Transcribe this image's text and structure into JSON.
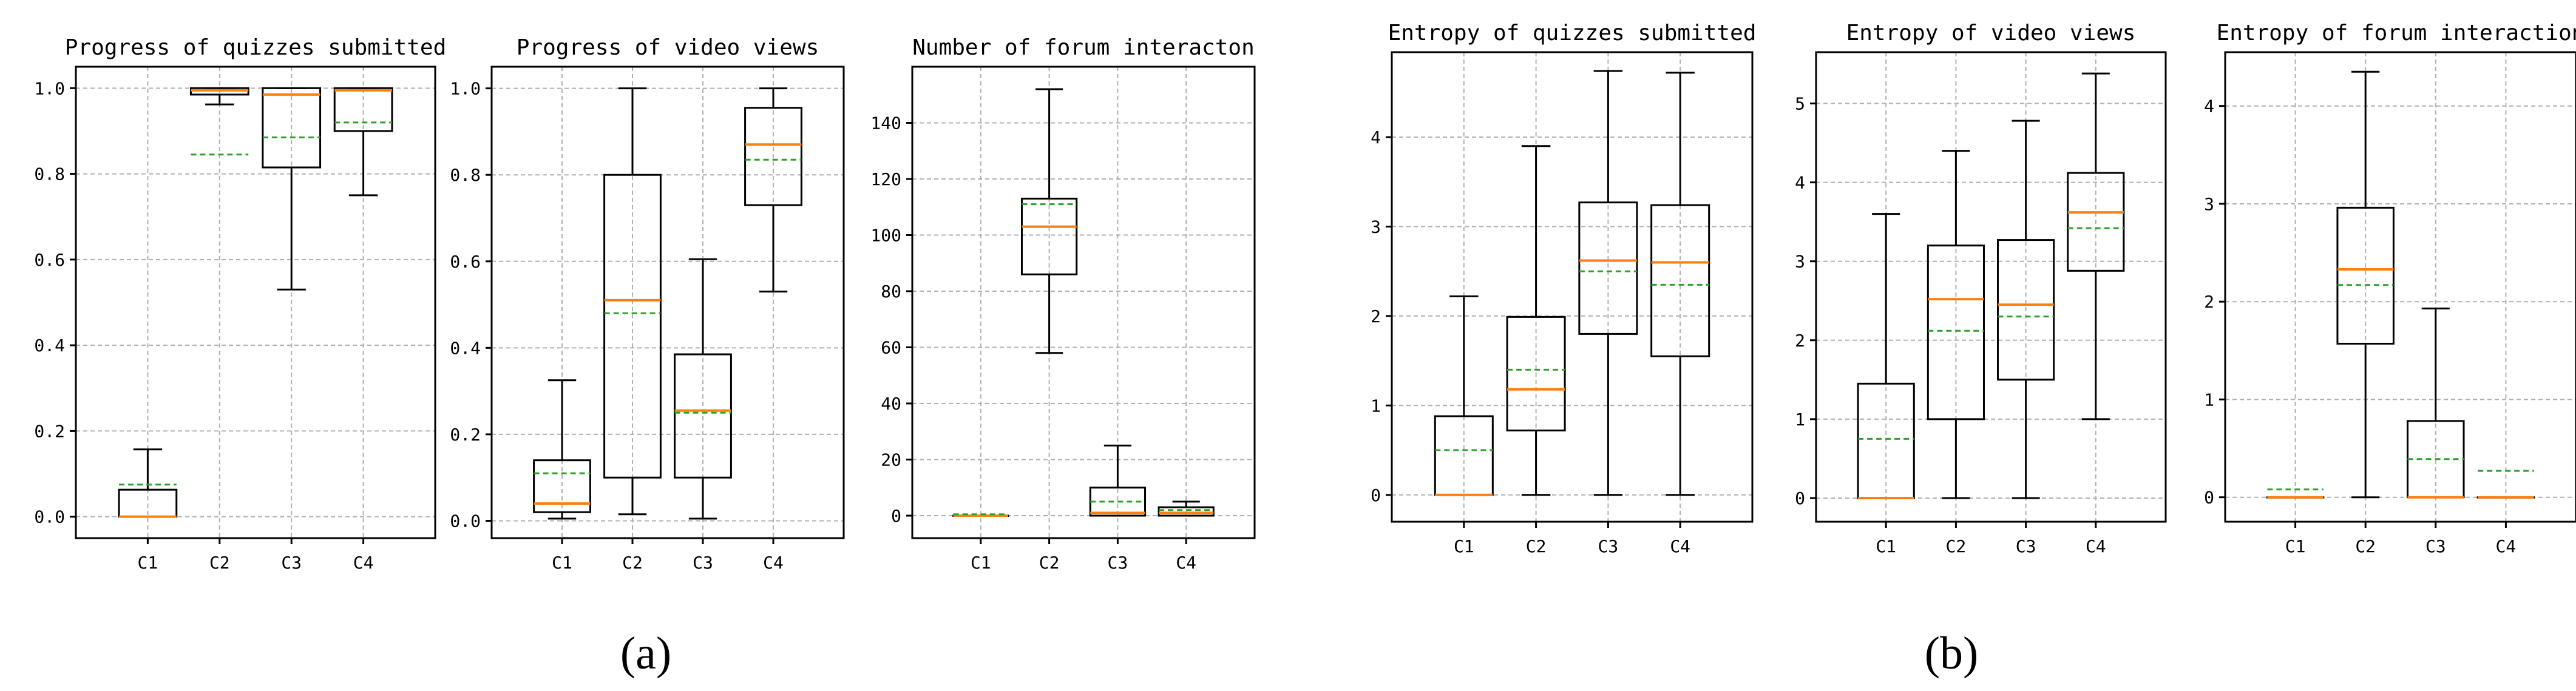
{
  "captions": {
    "a": "(a)",
    "b": "(b)"
  },
  "colors": {
    "box": "#000000",
    "median": "#ff7f0e",
    "mean": "#2ca02c",
    "grid": "#b0b0b0"
  },
  "chart_data": [
    {
      "type": "box",
      "title": "Progress of quizzes submitted",
      "categories": [
        "C1",
        "C2",
        "C3",
        "C4"
      ],
      "ylim": [
        -0.05,
        1.05
      ],
      "yticks": [
        0.0,
        0.2,
        0.4,
        0.6,
        0.8,
        1.0
      ],
      "ytick_labels": [
        "0.0",
        "0.2",
        "0.4",
        "0.6",
        "0.8",
        "1.0"
      ],
      "grid": true,
      "boxes": [
        {
          "min": 0.0,
          "q1": 0.0,
          "median": 0.0,
          "q3": 0.063,
          "max": 0.157,
          "mean": 0.075
        },
        {
          "min": 0.962,
          "q1": 0.985,
          "median": 0.995,
          "q3": 1.0,
          "max": 1.0,
          "mean": 0.845
        },
        {
          "min": 0.53,
          "q1": 0.815,
          "median": 0.985,
          "q3": 1.0,
          "max": 1.0,
          "mean": 0.885
        },
        {
          "min": 0.75,
          "q1": 0.9,
          "median": 0.995,
          "q3": 1.0,
          "max": 1.0,
          "mean": 0.92
        }
      ]
    },
    {
      "type": "box",
      "title": "Progress of video views",
      "categories": [
        "C1",
        "C2",
        "C3",
        "C4"
      ],
      "ylim": [
        -0.04,
        1.05
      ],
      "yticks": [
        0.0,
        0.2,
        0.4,
        0.6,
        0.8,
        1.0
      ],
      "ytick_labels": [
        "0.0",
        "0.2",
        "0.4",
        "0.6",
        "0.8",
        "1.0"
      ],
      "grid": true,
      "boxes": [
        {
          "min": 0.005,
          "q1": 0.02,
          "median": 0.04,
          "q3": 0.14,
          "max": 0.325,
          "mean": 0.11
        },
        {
          "min": 0.015,
          "q1": 0.1,
          "median": 0.51,
          "q3": 0.8,
          "max": 1.0,
          "mean": 0.48
        },
        {
          "min": 0.005,
          "q1": 0.1,
          "median": 0.255,
          "q3": 0.385,
          "max": 0.605,
          "mean": 0.25
        },
        {
          "min": 0.53,
          "q1": 0.73,
          "median": 0.87,
          "q3": 0.955,
          "max": 1.0,
          "mean": 0.835
        }
      ]
    },
    {
      "type": "box",
      "title": "Number of forum interacton",
      "categories": [
        "C1",
        "C2",
        "C3",
        "C4"
      ],
      "ylim": [
        -8,
        160
      ],
      "yticks": [
        0,
        20,
        40,
        60,
        80,
        100,
        120,
        140
      ],
      "ytick_labels": [
        "0",
        "20",
        "40",
        "60",
        "80",
        "100",
        "120",
        "140"
      ],
      "grid": true,
      "boxes": [
        {
          "min": 0,
          "q1": 0,
          "median": 0,
          "q3": 0,
          "max": 0,
          "mean": 0.5
        },
        {
          "min": 58,
          "q1": 86,
          "median": 103,
          "q3": 113,
          "max": 152,
          "mean": 111
        },
        {
          "min": 0,
          "q1": 0,
          "median": 1,
          "q3": 10,
          "max": 25,
          "mean": 5
        },
        {
          "min": 0,
          "q1": 0,
          "median": 1,
          "q3": 3,
          "max": 5,
          "mean": 2
        }
      ]
    },
    {
      "type": "box",
      "title": "Entropy of quizzes submitted",
      "categories": [
        "C1",
        "C2",
        "C3",
        "C4"
      ],
      "ylim": [
        -0.3,
        4.95
      ],
      "yticks": [
        0,
        1,
        2,
        3,
        4
      ],
      "ytick_labels": [
        "0",
        "1",
        "2",
        "3",
        "4"
      ],
      "grid": true,
      "boxes": [
        {
          "min": 0.0,
          "q1": 0.0,
          "median": 0.0,
          "q3": 0.88,
          "max": 2.22,
          "mean": 0.5
        },
        {
          "min": 0.0,
          "q1": 0.72,
          "median": 1.18,
          "q3": 1.99,
          "max": 3.9,
          "mean": 1.4
        },
        {
          "min": 0.0,
          "q1": 1.8,
          "median": 2.62,
          "q3": 3.27,
          "max": 4.74,
          "mean": 2.5
        },
        {
          "min": 0.0,
          "q1": 1.55,
          "median": 2.6,
          "q3": 3.24,
          "max": 4.72,
          "mean": 2.35
        }
      ]
    },
    {
      "type": "box",
      "title": "Entropy of video views",
      "categories": [
        "C1",
        "C2",
        "C3",
        "C4"
      ],
      "ylim": [
        -0.3,
        5.65
      ],
      "yticks": [
        0,
        1,
        2,
        3,
        4,
        5
      ],
      "ytick_labels": [
        "0",
        "1",
        "2",
        "3",
        "4",
        "5"
      ],
      "grid": true,
      "boxes": [
        {
          "min": 0.0,
          "q1": 0.0,
          "median": 0.0,
          "q3": 1.45,
          "max": 3.6,
          "mean": 0.75
        },
        {
          "min": 0.0,
          "q1": 1.0,
          "median": 2.52,
          "q3": 3.2,
          "max": 4.4,
          "mean": 2.12
        },
        {
          "min": 0.0,
          "q1": 1.5,
          "median": 2.45,
          "q3": 3.27,
          "max": 4.78,
          "mean": 2.3
        },
        {
          "min": 1.0,
          "q1": 2.88,
          "median": 3.62,
          "q3": 4.12,
          "max": 5.38,
          "mean": 3.42
        }
      ]
    },
    {
      "type": "box",
      "title": "Entropy of forum interaction",
      "categories": [
        "C1",
        "C2",
        "C3",
        "C4"
      ],
      "ylim": [
        -0.25,
        4.55
      ],
      "yticks": [
        0,
        1,
        2,
        3,
        4
      ],
      "ytick_labels": [
        "0",
        "1",
        "2",
        "3",
        "4"
      ],
      "grid": true,
      "boxes": [
        {
          "min": 0.0,
          "q1": 0.0,
          "median": 0.0,
          "q3": 0.0,
          "max": 0.0,
          "mean": 0.08
        },
        {
          "min": 0.0,
          "q1": 1.57,
          "median": 2.33,
          "q3": 2.96,
          "max": 4.35,
          "mean": 2.17
        },
        {
          "min": 0.0,
          "q1": 0.0,
          "median": 0.0,
          "q3": 0.78,
          "max": 1.93,
          "mean": 0.39
        },
        {
          "min": 0.0,
          "q1": 0.0,
          "median": 0.0,
          "q3": 0.0,
          "max": 0.0,
          "mean": 0.27
        }
      ]
    }
  ]
}
